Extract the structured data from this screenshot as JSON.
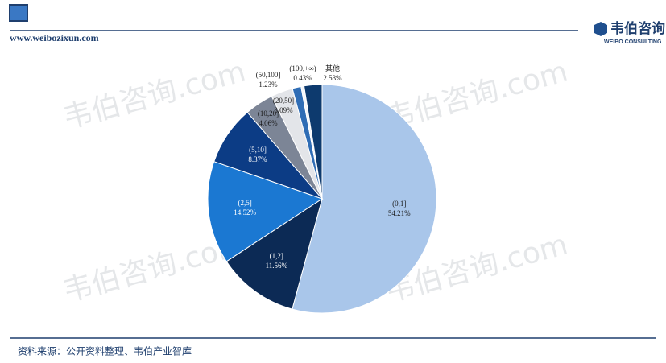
{
  "header": {
    "url": "www.weibozixun.com",
    "brand": "韦伯咨询",
    "brand_en": "WEIBO CONSULTING"
  },
  "watermark": "韦伯咨询.com",
  "footer": "资料来源：公开资料整理、韦伯产业智库",
  "chart_data": {
    "type": "pie",
    "categories": [
      "(0,1]",
      "(1,2]",
      "(2,5]",
      "(5,10]",
      "(10,20]",
      "(20,50]",
      "(50,100]",
      "(100,+∞)",
      "其他"
    ],
    "values": [
      54.21,
      11.56,
      14.52,
      8.37,
      4.06,
      3.09,
      1.23,
      0.43,
      2.53
    ],
    "value_labels": [
      "54.21%",
      "11.56%",
      "14.52%",
      "8.37%",
      "4.06%",
      "3.09%",
      "1.23%",
      "0.43%",
      "2.53%"
    ],
    "colors": [
      "#a9c6ea",
      "#0c2a55",
      "#1b78d2",
      "#0c3c85",
      "#7c8596",
      "#e3e5e9",
      "#2f6db5",
      "#f4f6f9",
      "#0d3a6e"
    ]
  }
}
